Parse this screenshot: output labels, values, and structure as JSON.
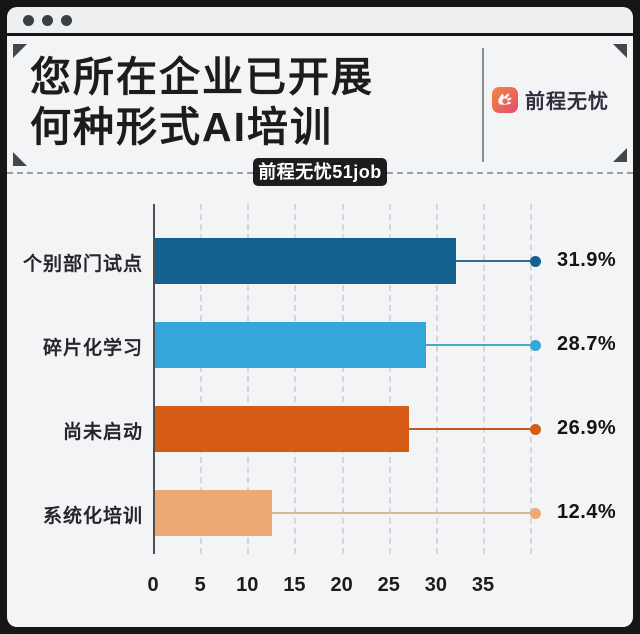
{
  "window": {
    "dot_count": 3
  },
  "header": {
    "title_line1": "您所在企业已开展",
    "title_line2": "何种形式AI培训",
    "brand_name": "前程无忧",
    "badge": "前程无忧51job"
  },
  "colors": {
    "frame": "#161616",
    "titlebar_bg": "#edeff1",
    "content_bg": "#f3f4f6",
    "badge_bg": "#1d1d1f",
    "icon_gradient_start": "#f08a3c",
    "icon_gradient_end": "#e74a72"
  },
  "chart_data": {
    "type": "bar",
    "orientation": "horizontal",
    "title": "您所在企业已开展何种形式AI培训",
    "categories": [
      "个别部门试点",
      "碎片化学习",
      "尚未启动",
      "系统化培训"
    ],
    "values": [
      31.9,
      28.7,
      26.9,
      12.4
    ],
    "value_labels": [
      "31.9%",
      "28.7%",
      "26.9%",
      "12.4%"
    ],
    "bar_colors": [
      "#146190",
      "#35a6da",
      "#d65c15",
      "#eea873"
    ],
    "leader_colors": [
      "#2d6f94",
      "#4aa8c9",
      "#c35a1c",
      "#d9b89a"
    ],
    "x_ticks": [
      0,
      5,
      10,
      15,
      20,
      25,
      30,
      35
    ],
    "grid_ticks": [
      5,
      10,
      15,
      20,
      25,
      30,
      35,
      40
    ],
    "xlim": [
      0,
      40
    ],
    "grid": "vertical-dashed",
    "legend": "none",
    "xlabel": "",
    "ylabel": ""
  }
}
